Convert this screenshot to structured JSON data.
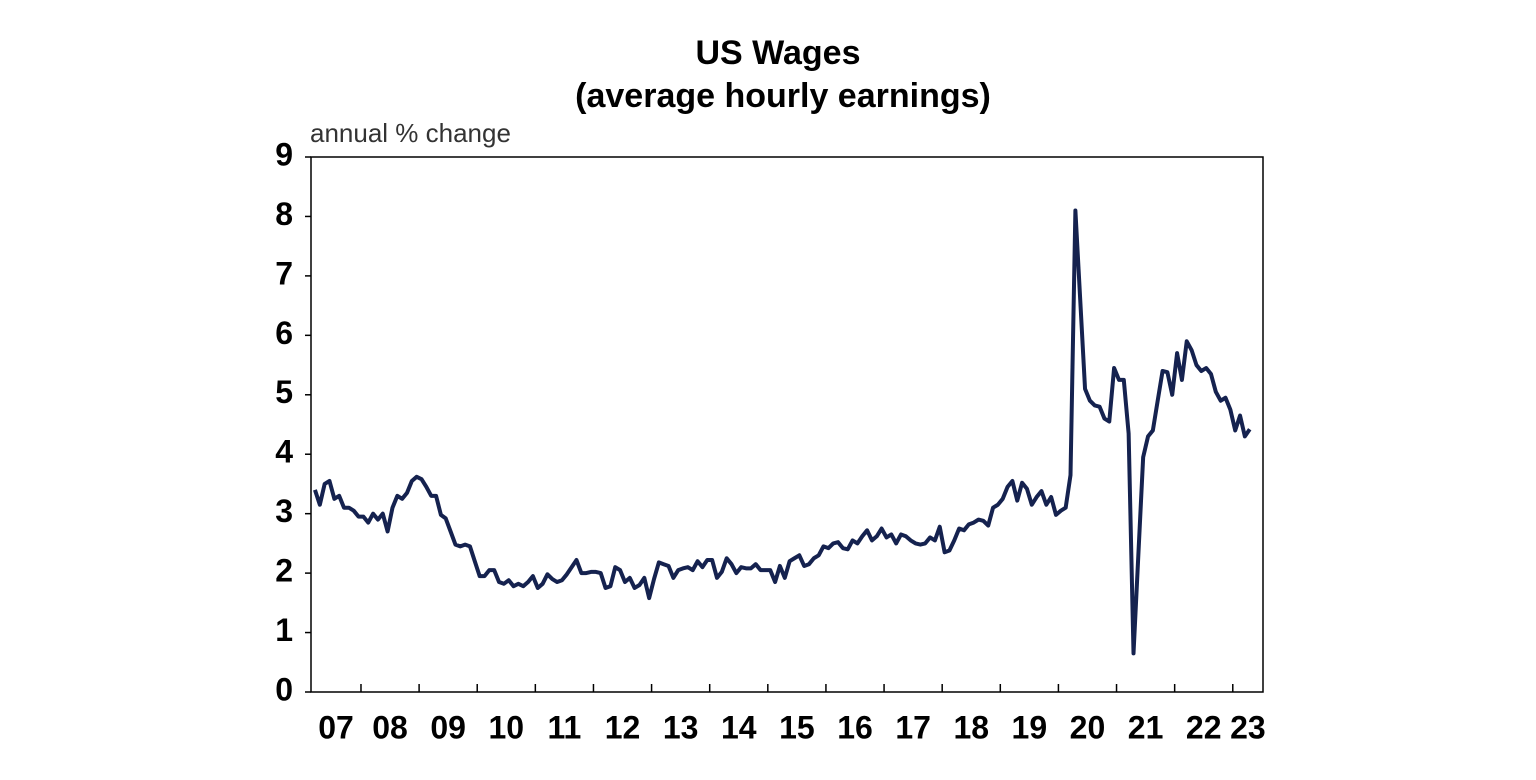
{
  "chart_data": {
    "type": "line",
    "title": "US Wages",
    "subtitle": "(average hourly earnings)",
    "y_label": "annual % change",
    "xlim": [
      2007.14,
      2023.52
    ],
    "xticks": [
      {
        "value": 2007,
        "label": "07"
      },
      {
        "value": 2008,
        "label": "08"
      },
      {
        "value": 2009,
        "label": "09"
      },
      {
        "value": 2010,
        "label": "10"
      },
      {
        "value": 2011,
        "label": "11"
      },
      {
        "value": 2012,
        "label": "12"
      },
      {
        "value": 2013,
        "label": "13"
      },
      {
        "value": 2014,
        "label": "14"
      },
      {
        "value": 2015,
        "label": "15"
      },
      {
        "value": 2016,
        "label": "16"
      },
      {
        "value": 2017,
        "label": "17"
      },
      {
        "value": 2018,
        "label": "18"
      },
      {
        "value": 2019,
        "label": "19"
      },
      {
        "value": 2020,
        "label": "20"
      },
      {
        "value": 2021,
        "label": "21"
      },
      {
        "value": 2022,
        "label": "22"
      },
      {
        "value": 2023,
        "label": "23"
      }
    ],
    "ylim": [
      0,
      9
    ],
    "yticks": [
      0,
      1,
      2,
      3,
      4,
      5,
      6,
      7,
      8,
      9
    ],
    "grid": false,
    "x": [
      2007.208,
      2007.292,
      2007.375,
      2007.458,
      2007.542,
      2007.625,
      2007.708,
      2007.792,
      2007.875,
      2007.958,
      2008.042,
      2008.125,
      2008.208,
      2008.292,
      2008.375,
      2008.458,
      2008.542,
      2008.625,
      2008.708,
      2008.792,
      2008.875,
      2008.958,
      2009.042,
      2009.125,
      2009.208,
      2009.292,
      2009.375,
      2009.458,
      2009.542,
      2009.625,
      2009.708,
      2009.792,
      2009.875,
      2009.958,
      2010.042,
      2010.125,
      2010.208,
      2010.292,
      2010.375,
      2010.458,
      2010.542,
      2010.625,
      2010.708,
      2010.792,
      2010.875,
      2010.958,
      2011.042,
      2011.125,
      2011.208,
      2011.292,
      2011.375,
      2011.458,
      2011.542,
      2011.625,
      2011.708,
      2011.792,
      2011.875,
      2011.958,
      2012.042,
      2012.125,
      2012.208,
      2012.292,
      2012.375,
      2012.458,
      2012.542,
      2012.625,
      2012.708,
      2012.792,
      2012.875,
      2012.958,
      2013.042,
      2013.125,
      2013.208,
      2013.292,
      2013.375,
      2013.458,
      2013.542,
      2013.625,
      2013.708,
      2013.792,
      2013.875,
      2013.958,
      2014.042,
      2014.125,
      2014.208,
      2014.292,
      2014.375,
      2014.458,
      2014.542,
      2014.625,
      2014.708,
      2014.792,
      2014.875,
      2014.958,
      2015.042,
      2015.125,
      2015.208,
      2015.292,
      2015.375,
      2015.458,
      2015.542,
      2015.625,
      2015.708,
      2015.792,
      2015.875,
      2015.958,
      2016.042,
      2016.125,
      2016.208,
      2016.292,
      2016.375,
      2016.458,
      2016.542,
      2016.625,
      2016.708,
      2016.792,
      2016.875,
      2016.958,
      2017.042,
      2017.125,
      2017.208,
      2017.292,
      2017.375,
      2017.458,
      2017.542,
      2017.625,
      2017.708,
      2017.792,
      2017.875,
      2017.958,
      2018.042,
      2018.125,
      2018.208,
      2018.292,
      2018.375,
      2018.458,
      2018.542,
      2018.625,
      2018.708,
      2018.792,
      2018.875,
      2018.958,
      2019.042,
      2019.125,
      2019.208,
      2019.292,
      2019.375,
      2019.458,
      2019.542,
      2019.625,
      2019.708,
      2019.792,
      2019.875,
      2019.958,
      2020.042,
      2020.125,
      2020.208,
      2020.292,
      2020.375,
      2020.458,
      2020.542,
      2020.625,
      2020.708,
      2020.792,
      2020.875,
      2020.958,
      2021.042,
      2021.125,
      2021.208,
      2021.292,
      2021.375,
      2021.458,
      2021.542,
      2021.625,
      2021.708,
      2021.792,
      2021.875,
      2021.958,
      2022.042,
      2022.125,
      2022.208,
      2022.292,
      2022.375,
      2022.458,
      2022.542,
      2022.625,
      2022.708,
      2022.792,
      2022.875,
      2022.958,
      2023.042,
      2023.125,
      2023.208,
      2023.292
    ],
    "series": [
      {
        "color": "#15224f",
        "values": [
          3.4,
          3.15,
          3.5,
          3.55,
          3.25,
          3.3,
          3.1,
          3.1,
          3.05,
          2.95,
          2.95,
          2.85,
          3.0,
          2.9,
          3.0,
          2.7,
          3.1,
          3.3,
          3.25,
          3.35,
          3.55,
          3.62,
          3.58,
          3.45,
          3.3,
          3.3,
          2.98,
          2.92,
          2.7,
          2.48,
          2.45,
          2.48,
          2.45,
          2.2,
          1.95,
          1.95,
          2.05,
          2.05,
          1.85,
          1.82,
          1.88,
          1.78,
          1.82,
          1.78,
          1.85,
          1.95,
          1.75,
          1.82,
          1.98,
          1.9,
          1.85,
          1.88,
          1.98,
          2.1,
          2.22,
          2.0,
          2.0,
          2.02,
          2.02,
          2.0,
          1.75,
          1.78,
          2.1,
          2.05,
          1.85,
          1.92,
          1.75,
          1.8,
          1.92,
          1.58,
          1.9,
          2.18,
          2.15,
          2.12,
          1.92,
          2.05,
          2.08,
          2.1,
          2.05,
          2.2,
          2.1,
          2.22,
          2.22,
          1.92,
          2.02,
          2.25,
          2.15,
          2.0,
          2.1,
          2.08,
          2.08,
          2.15,
          2.05,
          2.05,
          2.05,
          1.85,
          2.12,
          1.92,
          2.2,
          2.25,
          2.3,
          2.12,
          2.15,
          2.25,
          2.3,
          2.45,
          2.42,
          2.5,
          2.52,
          2.42,
          2.4,
          2.55,
          2.5,
          2.62,
          2.72,
          2.55,
          2.62,
          2.75,
          2.6,
          2.65,
          2.5,
          2.65,
          2.62,
          2.55,
          2.5,
          2.48,
          2.5,
          2.6,
          2.55,
          2.78,
          2.35,
          2.38,
          2.55,
          2.75,
          2.72,
          2.82,
          2.85,
          2.9,
          2.88,
          2.8,
          3.1,
          3.15,
          3.25,
          3.45,
          3.55,
          3.22,
          3.52,
          3.42,
          3.15,
          3.28,
          3.38,
          3.15,
          3.28,
          2.98,
          3.05,
          3.1,
          3.65,
          8.1,
          6.6,
          5.1,
          4.9,
          4.82,
          4.8,
          4.6,
          4.55,
          5.45,
          5.25,
          5.25,
          4.35,
          0.65,
          2.3,
          3.95,
          4.3,
          4.4,
          4.9,
          5.4,
          5.38,
          5.0,
          5.7,
          5.25,
          5.9,
          5.75,
          5.5,
          5.4,
          5.45,
          5.35,
          5.05,
          4.9,
          4.95,
          4.75,
          4.4,
          4.65,
          4.3,
          4.42
        ]
      }
    ]
  }
}
